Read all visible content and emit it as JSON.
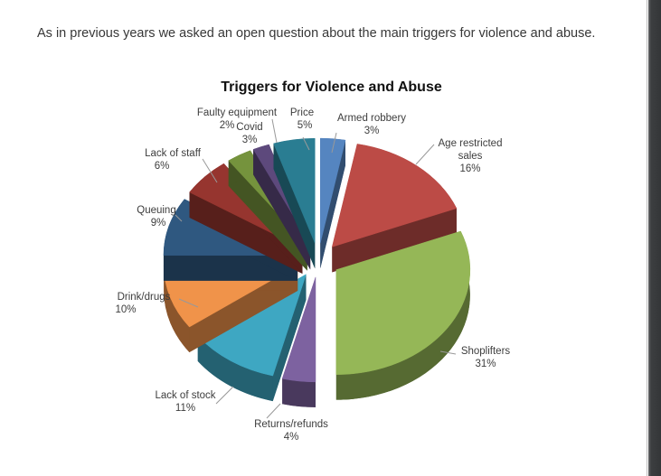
{
  "page": {
    "intro_text": "As in previous years we asked an open question about the main triggers for violence and abuse."
  },
  "chart_data": {
    "type": "pie",
    "style": "3d-exploded",
    "title": "Triggers for Violence and Abuse",
    "start_angle_deg": 0,
    "direction": "clockwise",
    "unit": "%",
    "slices": [
      {
        "label": "Armed robbery",
        "value": 3,
        "pct_label": "3%",
        "color": "#5585C0"
      },
      {
        "label": "Age restricted sales",
        "label_lines": [
          "Age restricted",
          "sales"
        ],
        "value": 16,
        "pct_label": "16%",
        "color": "#BC4B46"
      },
      {
        "label": "Shoplifters",
        "value": 31,
        "pct_label": "31%",
        "color": "#95B757"
      },
      {
        "label": "Returns/refunds",
        "value": 4,
        "pct_label": "4%",
        "color": "#7D62A0"
      },
      {
        "label": "Lack of stock",
        "value": 11,
        "pct_label": "11%",
        "color": "#3EA7C2"
      },
      {
        "label": "Drink/drugs",
        "value": 10,
        "pct_label": "10%",
        "color": "#F0934A"
      },
      {
        "label": "Queuing",
        "value": 9,
        "pct_label": "9%",
        "color": "#2F5880"
      },
      {
        "label": "Lack of staff",
        "value": 6,
        "pct_label": "6%",
        "color": "#96352F"
      },
      {
        "label": "Covid",
        "value": 3,
        "pct_label": "3%",
        "color": "#75933D"
      },
      {
        "label": "Faulty equipment",
        "value": 2,
        "pct_label": "2%",
        "color": "#5D497C"
      },
      {
        "label": "Price",
        "value": 5,
        "pct_label": "5%",
        "color": "#2A7D92"
      }
    ]
  }
}
